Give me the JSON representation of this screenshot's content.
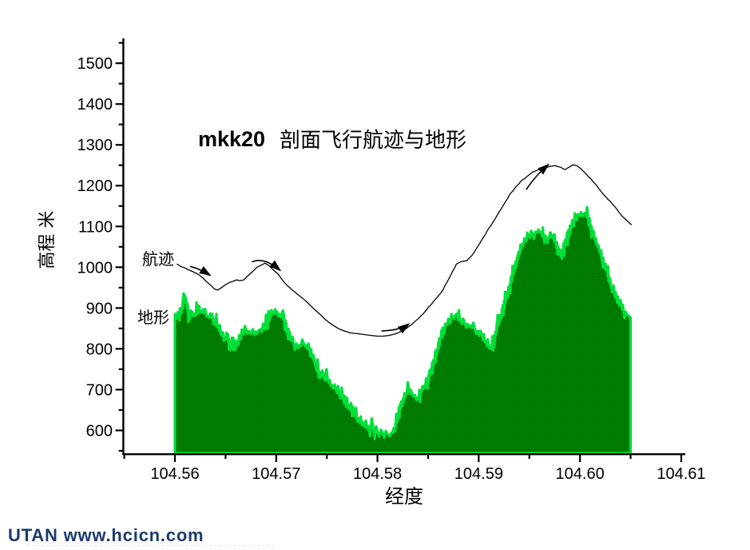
{
  "title": {
    "prefix": "mkk20",
    "main": "剖面飞行航迹与地形"
  },
  "axes": {
    "x": {
      "label": "经度",
      "tick_labels": [
        "104.56",
        "104.57",
        "104.58",
        "104.59",
        "104.60",
        "104.61"
      ],
      "tick_values": [
        104.56,
        104.57,
        104.58,
        104.59,
        104.6,
        104.61
      ],
      "minor_values": [
        104.555,
        104.565,
        104.575,
        104.585,
        104.595,
        104.605
      ]
    },
    "y": {
      "label": "高程 米",
      "tick_labels": [
        "600",
        "700",
        "800",
        "900",
        "1000",
        "1100",
        "1200",
        "1300",
        "1400",
        "1500"
      ],
      "tick_values": [
        600,
        700,
        800,
        900,
        1000,
        1100,
        1200,
        1300,
        1400,
        1500
      ],
      "minor_values": [
        550,
        650,
        750,
        850,
        950,
        1050,
        1150,
        1250,
        1350,
        1450,
        1550
      ]
    }
  },
  "annotations": {
    "trajectory_label": "航迹",
    "terrain_label": "地形",
    "arrows": [
      {
        "from": [
          104.5615,
          1002
        ],
        "ctrl": [
          104.5624,
          997
        ],
        "to": [
          104.5635,
          980
        ]
      },
      {
        "from": [
          104.5676,
          1013
        ],
        "ctrl": [
          104.5688,
          1026
        ],
        "to": [
          104.5704,
          992
        ]
      },
      {
        "from": [
          104.5804,
          844
        ],
        "ctrl": [
          104.5822,
          845
        ],
        "to": [
          104.5831,
          861
        ]
      },
      {
        "from": [
          104.5947,
          1190
        ],
        "ctrl": [
          104.5955,
          1222
        ],
        "to": [
          104.5969,
          1252
        ]
      }
    ]
  },
  "footer": {
    "text": "UTAN  www.hcicn.com"
  },
  "colors": {
    "terrain_fill": "#007c00",
    "terrain_fill_dot": "#006c00",
    "terrain_edge": "#00df3a",
    "trajectory": "#000000",
    "axis": "#000000",
    "footer_text": "#1c3a6e"
  },
  "chart_data": {
    "type": "area",
    "xlabel": "经度",
    "ylabel": "高程 米",
    "xlim": [
      104.555,
      104.6104
    ],
    "ylim": [
      544,
      1561
    ],
    "series": [
      {
        "name": "地形",
        "type": "area",
        "baseline": 544,
        "points": [
          [
            104.56,
            885
          ],
          [
            104.5604,
            875
          ],
          [
            104.5607,
            901
          ],
          [
            104.5609,
            934
          ],
          [
            104.5612,
            910
          ],
          [
            104.5614,
            875
          ],
          [
            104.5617,
            891
          ],
          [
            104.562,
            887
          ],
          [
            104.5622,
            901
          ],
          [
            104.5625,
            891
          ],
          [
            104.5628,
            897
          ],
          [
            104.5632,
            881
          ],
          [
            104.5635,
            887
          ],
          [
            104.5639,
            871
          ],
          [
            104.5643,
            858
          ],
          [
            104.5646,
            842
          ],
          [
            104.5649,
            826
          ],
          [
            104.5652,
            834
          ],
          [
            104.5654,
            803
          ],
          [
            104.5657,
            824
          ],
          [
            104.5659,
            801
          ],
          [
            104.5662,
            816
          ],
          [
            104.5664,
            828
          ],
          [
            104.5667,
            840
          ],
          [
            104.567,
            850
          ],
          [
            104.5673,
            844
          ],
          [
            104.5677,
            848
          ],
          [
            104.568,
            842
          ],
          [
            104.5683,
            846
          ],
          [
            104.5685,
            848
          ],
          [
            104.5688,
            856
          ],
          [
            104.5691,
            867
          ],
          [
            104.5694,
            881
          ],
          [
            104.5696,
            891
          ],
          [
            104.5699,
            897
          ],
          [
            104.5701,
            891
          ],
          [
            104.5703,
            885
          ],
          [
            104.5706,
            891
          ],
          [
            104.5708,
            871
          ],
          [
            104.5711,
            846
          ],
          [
            104.5714,
            828
          ],
          [
            104.5717,
            818
          ],
          [
            104.572,
            813
          ],
          [
            104.5723,
            809
          ],
          [
            104.5727,
            815
          ],
          [
            104.573,
            809
          ],
          [
            104.5733,
            799
          ],
          [
            104.5736,
            783
          ],
          [
            104.5739,
            760
          ],
          [
            104.5743,
            744
          ],
          [
            104.5747,
            734
          ],
          [
            104.5751,
            724
          ],
          [
            104.5755,
            711
          ],
          [
            104.5759,
            701
          ],
          [
            104.5762,
            691
          ],
          [
            104.5766,
            681
          ],
          [
            104.5772,
            662
          ],
          [
            104.5777,
            646
          ],
          [
            104.5781,
            630
          ],
          [
            104.5786,
            620
          ],
          [
            104.5791,
            611
          ],
          [
            104.5796,
            605
          ],
          [
            104.58,
            597
          ],
          [
            104.5805,
            595
          ],
          [
            104.581,
            591
          ],
          [
            104.5814,
            595
          ],
          [
            104.5817,
            603
          ],
          [
            104.582,
            636
          ],
          [
            104.5824,
            666
          ],
          [
            104.5828,
            691
          ],
          [
            104.5831,
            701
          ],
          [
            104.5834,
            691
          ],
          [
            104.5837,
            687
          ],
          [
            104.584,
            681
          ],
          [
            104.5843,
            695
          ],
          [
            104.5846,
            709
          ],
          [
            104.5849,
            720
          ],
          [
            104.5852,
            740
          ],
          [
            104.5856,
            773
          ],
          [
            104.5859,
            799
          ],
          [
            104.5862,
            826
          ],
          [
            104.5865,
            848
          ],
          [
            104.5868,
            861
          ],
          [
            104.5871,
            871
          ],
          [
            104.5874,
            879
          ],
          [
            104.5877,
            883
          ],
          [
            104.5879,
            887
          ],
          [
            104.5882,
            873
          ],
          [
            104.5886,
            865
          ],
          [
            104.5889,
            861
          ],
          [
            104.5892,
            857
          ],
          [
            104.5896,
            850
          ],
          [
            104.5899,
            844
          ],
          [
            104.5903,
            836
          ],
          [
            104.5907,
            820
          ],
          [
            104.591,
            809
          ],
          [
            104.5912,
            801
          ],
          [
            104.5915,
            816
          ],
          [
            104.5917,
            842
          ],
          [
            104.5919,
            865
          ],
          [
            104.5922,
            881
          ],
          [
            104.5924,
            901
          ],
          [
            104.5927,
            924
          ],
          [
            104.593,
            944
          ],
          [
            104.5932,
            965
          ],
          [
            104.5934,
            989
          ],
          [
            104.5937,
            1008
          ],
          [
            104.594,
            1038
          ],
          [
            104.5943,
            1057
          ],
          [
            104.5946,
            1067
          ],
          [
            104.5949,
            1077
          ],
          [
            104.5953,
            1083
          ],
          [
            104.5956,
            1087
          ],
          [
            104.5959,
            1092
          ],
          [
            104.5962,
            1087
          ],
          [
            104.5964,
            1075
          ],
          [
            104.5967,
            1067
          ],
          [
            104.5969,
            1073
          ],
          [
            104.5971,
            1085
          ],
          [
            104.5974,
            1079
          ],
          [
            104.5976,
            1061
          ],
          [
            104.5979,
            1042
          ],
          [
            104.5982,
            1024
          ],
          [
            104.5984,
            1047
          ],
          [
            104.5986,
            1067
          ],
          [
            104.5989,
            1085
          ],
          [
            104.5991,
            1100
          ],
          [
            104.5993,
            1112
          ],
          [
            104.5996,
            1122
          ],
          [
            104.5998,
            1130
          ],
          [
            104.6001,
            1135
          ],
          [
            104.6003,
            1130
          ],
          [
            104.6005,
            1133
          ],
          [
            104.6008,
            1120
          ],
          [
            104.601,
            1106
          ],
          [
            104.6012,
            1087
          ],
          [
            104.6015,
            1073
          ],
          [
            104.6017,
            1057
          ],
          [
            104.602,
            1042
          ],
          [
            104.6022,
            1024
          ],
          [
            104.6024,
            1008
          ],
          [
            104.6027,
            989
          ],
          [
            104.6029,
            969
          ],
          [
            104.6031,
            953
          ],
          [
            104.6034,
            940
          ],
          [
            104.6036,
            926
          ],
          [
            104.6038,
            914
          ],
          [
            104.6041,
            905
          ],
          [
            104.6043,
            893
          ],
          [
            104.6046,
            885
          ],
          [
            104.6048,
            881
          ],
          [
            104.605,
            877
          ]
        ]
      },
      {
        "name": "航迹",
        "type": "line",
        "points": [
          [
            104.5602,
            1008
          ],
          [
            104.561,
            998
          ],
          [
            104.5617,
            990
          ],
          [
            104.5623,
            983
          ],
          [
            104.5628,
            973
          ],
          [
            104.5634,
            959
          ],
          [
            104.5639,
            947
          ],
          [
            104.5642,
            944
          ],
          [
            104.5646,
            950
          ],
          [
            104.565,
            957
          ],
          [
            104.5654,
            963
          ],
          [
            104.5658,
            966
          ],
          [
            104.5661,
            969
          ],
          [
            104.5664,
            967
          ],
          [
            104.5668,
            969
          ],
          [
            104.5672,
            979
          ],
          [
            104.5677,
            990
          ],
          [
            104.5681,
            1000
          ],
          [
            104.5686,
            1006
          ],
          [
            104.5689,
            1010
          ],
          [
            104.5693,
            1004
          ],
          [
            104.5697,
            994
          ],
          [
            104.5702,
            983
          ],
          [
            104.5706,
            969
          ],
          [
            104.5711,
            955
          ],
          [
            104.5716,
            944
          ],
          [
            104.5721,
            934
          ],
          [
            104.5725,
            926
          ],
          [
            104.5729,
            918
          ],
          [
            104.5734,
            906
          ],
          [
            104.5739,
            894
          ],
          [
            104.5744,
            883
          ],
          [
            104.5748,
            873
          ],
          [
            104.5753,
            863
          ],
          [
            104.5758,
            855
          ],
          [
            104.5762,
            849
          ],
          [
            104.5768,
            843
          ],
          [
            104.5774,
            839
          ],
          [
            104.5781,
            837
          ],
          [
            104.5787,
            835
          ],
          [
            104.5793,
            833
          ],
          [
            104.58,
            831
          ],
          [
            104.5806,
            831
          ],
          [
            104.5812,
            833
          ],
          [
            104.5818,
            837
          ],
          [
            104.5825,
            845
          ],
          [
            104.5831,
            855
          ],
          [
            104.5837,
            867
          ],
          [
            104.5844,
            883
          ],
          [
            104.585,
            901
          ],
          [
            104.5856,
            918
          ],
          [
            104.5863,
            938
          ],
          [
            104.5869,
            965
          ],
          [
            104.5874,
            989
          ],
          [
            104.5878,
            1008
          ],
          [
            104.5883,
            1014
          ],
          [
            104.5888,
            1016
          ],
          [
            104.5893,
            1028
          ],
          [
            104.5898,
            1047
          ],
          [
            104.5904,
            1071
          ],
          [
            104.5909,
            1092
          ],
          [
            104.5915,
            1114
          ],
          [
            104.592,
            1135
          ],
          [
            104.5926,
            1159
          ],
          [
            104.5931,
            1180
          ],
          [
            104.5937,
            1198
          ],
          [
            104.5942,
            1212
          ],
          [
            104.5948,
            1223
          ],
          [
            104.5953,
            1233
          ],
          [
            104.5959,
            1239
          ],
          [
            104.5964,
            1243
          ],
          [
            104.597,
            1247
          ],
          [
            104.5975,
            1249
          ],
          [
            104.5981,
            1245
          ],
          [
            104.5985,
            1239
          ],
          [
            104.5989,
            1245
          ],
          [
            104.5993,
            1251
          ],
          [
            104.5997,
            1249
          ],
          [
            104.6001,
            1241
          ],
          [
            104.6006,
            1229
          ],
          [
            104.6011,
            1216
          ],
          [
            104.6016,
            1202
          ],
          [
            104.602,
            1188
          ],
          [
            104.6025,
            1174
          ],
          [
            104.603,
            1161
          ],
          [
            104.6035,
            1147
          ],
          [
            104.6039,
            1133
          ],
          [
            104.6044,
            1120
          ],
          [
            104.6049,
            1108
          ],
          [
            104.6051,
            1104
          ]
        ]
      }
    ]
  }
}
